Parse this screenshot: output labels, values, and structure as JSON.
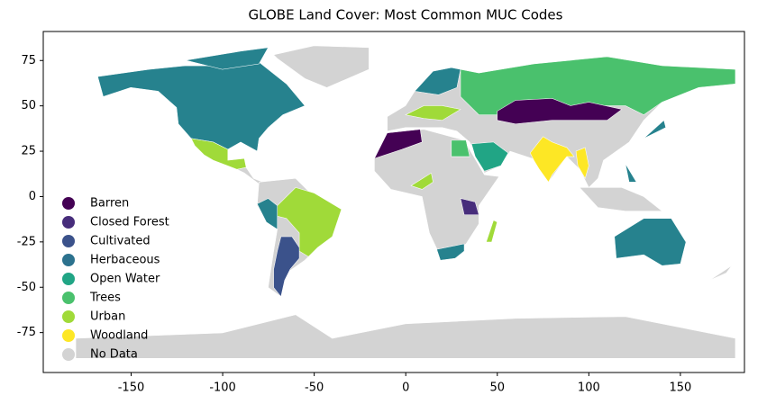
{
  "chart_data": {
    "type": "map",
    "title": "GLOBE Land Cover: Most Common MUC Codes",
    "xlim": [
      -198,
      185
    ],
    "ylim": [
      -97,
      91
    ],
    "xticks": [
      -150,
      -100,
      -50,
      0,
      50,
      100,
      150
    ],
    "yticks": [
      -75,
      -50,
      -25,
      0,
      25,
      50,
      75
    ],
    "legend": "lower left",
    "legend_items": [
      {
        "name": "Barren",
        "color": "#440154"
      },
      {
        "name": "Closed Forest",
        "color": "#472d7b"
      },
      {
        "name": "Cultivated",
        "color": "#3b528b"
      },
      {
        "name": "Herbaceous",
        "color": "#2c728e"
      },
      {
        "name": "Open Water",
        "color": "#21a585"
      },
      {
        "name": "Trees",
        "color": "#4ac16d"
      },
      {
        "name": "Urban",
        "color": "#a0da39"
      },
      {
        "name": "Woodland",
        "color": "#fde725"
      },
      {
        "name": "No Data",
        "color": "#d3d3d3"
      }
    ]
  }
}
